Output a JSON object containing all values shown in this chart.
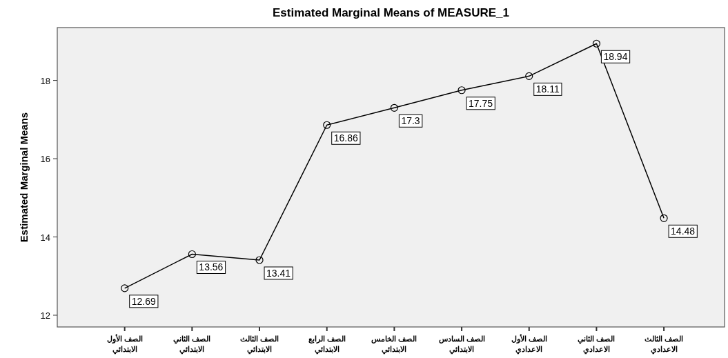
{
  "chart_data": {
    "type": "line",
    "title": "Estimated Marginal Means of MEASURE_1",
    "ylabel": "Estimated Marginal Means",
    "categories": [
      "الصف الأول\nالابتدائي",
      "الصف الثاني\nالابتدائي",
      "الصف الثالث\nالابتدائي",
      "الصف الرابع\nالابتدائي",
      "الصف الخامس\nالابتدائي",
      "الصف السادس\nالابتدائي",
      "الصف الأول\nالاعدادي",
      "الصف الثاني\nالاعدادي",
      "الصف الثالث\nالاعدادي"
    ],
    "series": [
      {
        "color": "#000000",
        "values": [
          12.69,
          13.56,
          13.41,
          16.86,
          17.3,
          17.75,
          18.11,
          18.94,
          14.48
        ]
      }
    ],
    "data_labels": true,
    "marker": "circle",
    "line_style": "solid",
    "grid": false,
    "ylim": [
      11.7,
      19.35
    ],
    "yticks": [
      12,
      14,
      16,
      18
    ]
  }
}
